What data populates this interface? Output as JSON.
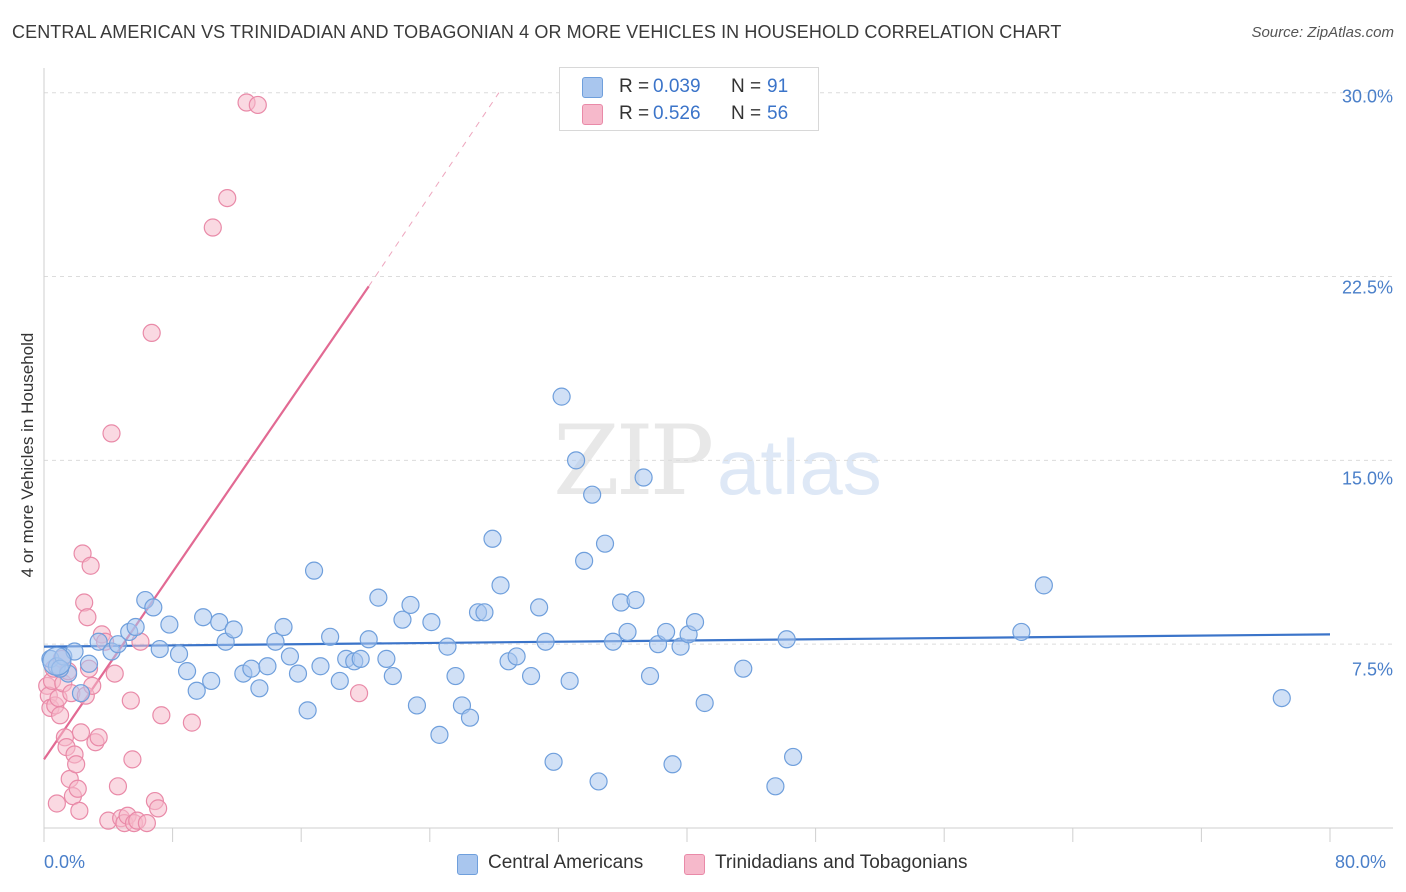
{
  "chart_data": {
    "type": "scatter",
    "title": "CENTRAL AMERICAN VS TRINIDADIAN AND TOBAGONIAN 4 OR MORE VEHICLES IN HOUSEHOLD CORRELATION CHART",
    "source": "Source: ZipAtlas.com",
    "xlabel": "",
    "ylabel": "4 or more Vehicles in Household",
    "xlim": [
      0,
      80
    ],
    "ylim": [
      0,
      30.6
    ],
    "x_tick_labels": [
      "0.0%",
      "80.0%"
    ],
    "y_ticks": [
      {
        "value": 7.5,
        "label": "7.5%"
      },
      {
        "value": 15.0,
        "label": "15.0%"
      },
      {
        "value": 22.5,
        "label": "22.5%"
      },
      {
        "value": 30.0,
        "label": "30.0%"
      }
    ],
    "watermark": {
      "zip": "ZIP",
      "atlas": "atlas"
    },
    "stats": [
      {
        "r_label": "R = ",
        "r": "0.039",
        "n_label": "N = ",
        "n": "91",
        "color": "#a9c6ee"
      },
      {
        "r_label": "R = ",
        "r": "0.526",
        "n_label": "N = ",
        "n": "56",
        "color": "#f6b9cb"
      }
    ],
    "series": [
      {
        "name": "Central Americans",
        "color": "#a9c6ee",
        "edge": "#6f9fdc",
        "trend": {
          "x": [
            0,
            80
          ],
          "y": [
            7.4,
            7.9
          ],
          "color": "#3b74c9"
        },
        "points": [
          [
            0.4,
            6.9
          ],
          [
            0.8,
            6.6
          ],
          [
            1.2,
            7.0
          ],
          [
            1.5,
            6.3
          ],
          [
            1.9,
            7.2
          ],
          [
            2.3,
            5.5
          ],
          [
            2.8,
            6.7
          ],
          [
            3.4,
            7.6
          ],
          [
            4.2,
            7.2
          ],
          [
            4.6,
            7.5
          ],
          [
            5.3,
            8.0
          ],
          [
            5.7,
            8.2
          ],
          [
            6.3,
            9.3
          ],
          [
            6.8,
            9.0
          ],
          [
            7.2,
            7.3
          ],
          [
            7.8,
            8.3
          ],
          [
            8.4,
            7.1
          ],
          [
            8.9,
            6.4
          ],
          [
            9.5,
            5.6
          ],
          [
            9.9,
            8.6
          ],
          [
            10.4,
            6.0
          ],
          [
            10.9,
            8.4
          ],
          [
            11.3,
            7.6
          ],
          [
            11.8,
            8.1
          ],
          [
            12.4,
            6.3
          ],
          [
            12.9,
            6.5
          ],
          [
            13.4,
            5.7
          ],
          [
            13.9,
            6.6
          ],
          [
            14.4,
            7.6
          ],
          [
            14.9,
            8.2
          ],
          [
            15.3,
            7.0
          ],
          [
            15.8,
            6.3
          ],
          [
            16.4,
            4.8
          ],
          [
            16.8,
            10.5
          ],
          [
            17.2,
            6.6
          ],
          [
            17.8,
            7.8
          ],
          [
            18.4,
            6.0
          ],
          [
            18.8,
            6.9
          ],
          [
            19.3,
            6.8
          ],
          [
            19.7,
            6.9
          ],
          [
            20.2,
            7.7
          ],
          [
            20.8,
            9.4
          ],
          [
            21.3,
            6.9
          ],
          [
            21.7,
            6.2
          ],
          [
            22.3,
            8.5
          ],
          [
            22.8,
            9.1
          ],
          [
            23.2,
            5.0
          ],
          [
            24.1,
            8.4
          ],
          [
            24.6,
            3.8
          ],
          [
            25.1,
            7.4
          ],
          [
            25.6,
            6.2
          ],
          [
            26.0,
            5.0
          ],
          [
            26.5,
            4.5
          ],
          [
            27.0,
            8.8
          ],
          [
            27.4,
            8.8
          ],
          [
            27.9,
            11.8
          ],
          [
            28.4,
            9.9
          ],
          [
            28.9,
            6.8
          ],
          [
            29.4,
            7.0
          ],
          [
            30.3,
            6.2
          ],
          [
            30.8,
            9.0
          ],
          [
            31.2,
            7.6
          ],
          [
            31.7,
            2.7
          ],
          [
            32.2,
            17.6
          ],
          [
            32.7,
            6.0
          ],
          [
            33.1,
            15.0
          ],
          [
            33.6,
            10.9
          ],
          [
            34.1,
            13.6
          ],
          [
            34.5,
            1.9
          ],
          [
            34.9,
            11.6
          ],
          [
            35.4,
            7.6
          ],
          [
            35.9,
            9.2
          ],
          [
            36.3,
            8.0
          ],
          [
            36.8,
            9.3
          ],
          [
            37.3,
            14.3
          ],
          [
            37.7,
            6.2
          ],
          [
            38.2,
            7.5
          ],
          [
            38.7,
            8.0
          ],
          [
            39.1,
            2.6
          ],
          [
            39.6,
            7.4
          ],
          [
            40.1,
            7.9
          ],
          [
            40.5,
            8.4
          ],
          [
            41.1,
            5.1
          ],
          [
            43.5,
            6.5
          ],
          [
            45.5,
            1.7
          ],
          [
            46.2,
            7.7
          ],
          [
            46.6,
            2.9
          ],
          [
            62.2,
            9.9
          ],
          [
            60.8,
            8.0
          ],
          [
            77.0,
            5.3
          ],
          [
            1.0,
            6.5
          ]
        ]
      },
      {
        "name": "Trinidadians and Tobagonians",
        "color": "#f6b9cb",
        "edge": "#e98aa8",
        "trend": {
          "x": [
            0,
            20.2
          ],
          "y": [
            2.8,
            22.1
          ],
          "dash_to": [
            28.3,
            30.0
          ],
          "color": "#e26a93"
        },
        "points": [
          [
            0.2,
            5.8
          ],
          [
            0.3,
            5.4
          ],
          [
            0.4,
            4.9
          ],
          [
            0.5,
            6.0
          ],
          [
            0.6,
            6.5
          ],
          [
            0.7,
            5.0
          ],
          [
            0.8,
            1.0
          ],
          [
            0.9,
            5.3
          ],
          [
            1.0,
            4.6
          ],
          [
            1.1,
            6.9
          ],
          [
            1.2,
            5.9
          ],
          [
            1.3,
            3.7
          ],
          [
            1.4,
            3.3
          ],
          [
            1.5,
            6.4
          ],
          [
            1.6,
            2.0
          ],
          [
            1.7,
            5.5
          ],
          [
            1.8,
            1.3
          ],
          [
            1.9,
            3.0
          ],
          [
            2.0,
            2.6
          ],
          [
            2.1,
            1.6
          ],
          [
            2.2,
            0.7
          ],
          [
            2.3,
            3.9
          ],
          [
            2.4,
            11.2
          ],
          [
            2.5,
            9.2
          ],
          [
            2.6,
            5.4
          ],
          [
            2.7,
            8.6
          ],
          [
            2.8,
            6.5
          ],
          [
            2.9,
            10.7
          ],
          [
            3.0,
            5.8
          ],
          [
            3.2,
            3.5
          ],
          [
            3.4,
            3.7
          ],
          [
            3.6,
            7.9
          ],
          [
            3.8,
            7.6
          ],
          [
            4.0,
            0.3
          ],
          [
            4.2,
            16.1
          ],
          [
            4.4,
            6.3
          ],
          [
            4.6,
            1.7
          ],
          [
            4.8,
            0.4
          ],
          [
            5.0,
            0.2
          ],
          [
            5.2,
            0.5
          ],
          [
            5.4,
            5.2
          ],
          [
            5.5,
            2.8
          ],
          [
            5.6,
            0.2
          ],
          [
            5.8,
            0.3
          ],
          [
            6.0,
            7.6
          ],
          [
            6.4,
            0.2
          ],
          [
            6.7,
            20.2
          ],
          [
            6.9,
            1.1
          ],
          [
            7.1,
            0.8
          ],
          [
            7.3,
            4.6
          ],
          [
            9.2,
            4.3
          ],
          [
            10.5,
            24.5
          ],
          [
            11.4,
            25.7
          ],
          [
            12.6,
            29.6
          ],
          [
            13.3,
            29.5
          ],
          [
            19.6,
            5.5
          ]
        ]
      }
    ]
  },
  "legend": {
    "items": [
      {
        "label": "Central Americans",
        "color": "#a9c6ee"
      },
      {
        "label": "Trinidadians and Tobagonians",
        "color": "#f6b9cb"
      }
    ]
  }
}
